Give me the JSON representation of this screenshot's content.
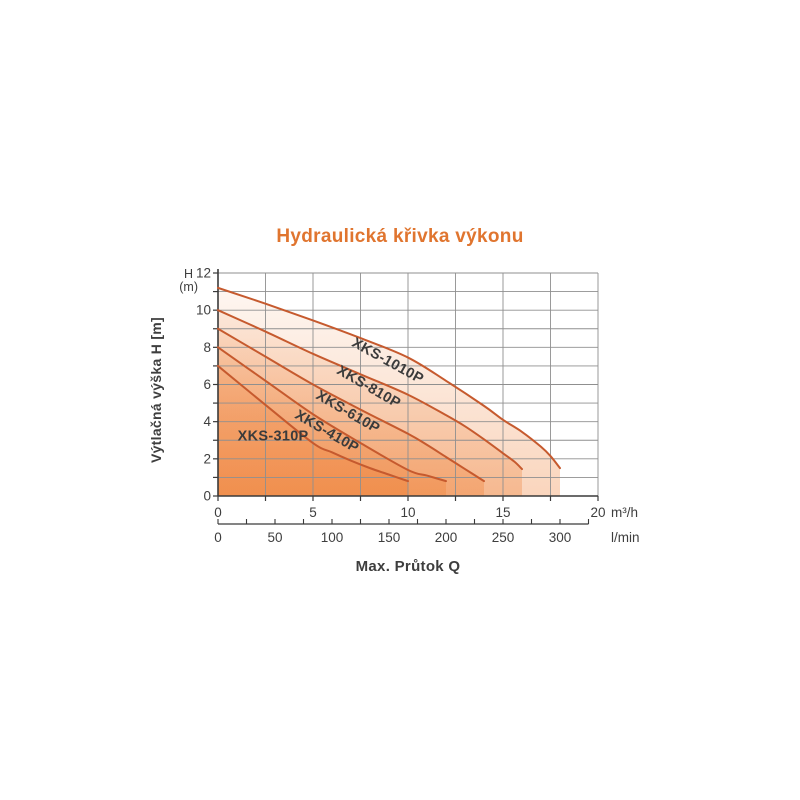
{
  "chart_data": {
    "type": "line",
    "title": "Hydraulická křivka výkonu",
    "xlabel": "Max. Průtok Q",
    "ylabel": "Výtlačná výška H [m]",
    "y_axis": {
      "unit_top_line1": "H",
      "unit_top_line2": "(m)",
      "range": [
        0,
        12
      ],
      "grid_step": 1,
      "tick_step": 1,
      "labels": [
        0,
        2,
        4,
        6,
        8,
        10,
        12
      ]
    },
    "x_axis": {
      "unit": "m³/h",
      "range": [
        0,
        20
      ],
      "grid_step": 2.5,
      "tick_step": 2.5,
      "labels": [
        0,
        5,
        10,
        15,
        20
      ]
    },
    "x_axis_secondary": {
      "unit": "l/min",
      "range": [
        0,
        325
      ],
      "tick_step": 25,
      "labels": [
        0,
        50,
        100,
        150,
        200,
        250,
        300
      ],
      "l_per_m3h": 16.6667
    },
    "series": [
      {
        "name": "XKS-1010P",
        "points": [
          [
            0,
            11.2
          ],
          [
            2.5,
            10.35
          ],
          [
            5,
            9.45
          ],
          [
            7.5,
            8.5
          ],
          [
            10,
            7.45
          ],
          [
            12,
            6.2
          ],
          [
            14,
            4.85
          ],
          [
            15,
            4.1
          ],
          [
            16,
            3.45
          ],
          [
            17,
            2.65
          ],
          [
            17.5,
            2.15
          ],
          [
            18,
            1.5
          ]
        ],
        "label": {
          "q": 8.95,
          "h": 7.3,
          "angle": 29
        }
      },
      {
        "name": "XKS-810P",
        "points": [
          [
            0,
            10
          ],
          [
            2.5,
            8.85
          ],
          [
            5,
            7.65
          ],
          [
            7.5,
            6.55
          ],
          [
            10,
            5.45
          ],
          [
            12,
            4.35
          ],
          [
            13,
            3.75
          ],
          [
            14,
            3.05
          ],
          [
            15,
            2.3
          ],
          [
            15.6,
            1.85
          ],
          [
            16,
            1.45
          ]
        ],
        "label": {
          "q": 7.95,
          "h": 5.9,
          "angle": 30
        }
      },
      {
        "name": "XKS-610P",
        "points": [
          [
            0,
            9
          ],
          [
            2.5,
            7.5
          ],
          [
            5,
            6.0
          ],
          [
            7.5,
            4.65
          ],
          [
            10,
            3.35
          ],
          [
            11,
            2.75
          ],
          [
            12,
            2.1
          ],
          [
            13,
            1.45
          ],
          [
            14,
            0.8
          ]
        ],
        "label": {
          "q": 6.85,
          "h": 4.55,
          "angle": 30
        }
      },
      {
        "name": "XKS-410P",
        "points": [
          [
            0,
            8
          ],
          [
            2.5,
            6.2
          ],
          [
            5,
            4.4
          ],
          [
            7.5,
            2.85
          ],
          [
            10,
            1.4
          ],
          [
            11,
            1.1
          ],
          [
            12,
            0.8
          ]
        ],
        "label": {
          "q": 5.75,
          "h": 3.5,
          "angle": 30
        }
      },
      {
        "name": "XKS-310P",
        "points": [
          [
            0,
            7
          ],
          [
            2.5,
            4.9
          ],
          [
            5,
            2.85
          ],
          [
            6,
            2.35
          ],
          [
            7,
            1.9
          ],
          [
            8,
            1.5
          ],
          [
            9,
            1.15
          ],
          [
            10,
            0.8
          ]
        ],
        "label": {
          "q": 2.9,
          "h": 3.25,
          "angle": 0
        }
      }
    ],
    "legend_position": "on-curves",
    "grid": true,
    "colors": {
      "title": "#e0752f",
      "curve": "#c65a2e",
      "fill": "#ee7c30",
      "fill_opacity_bottom": 0.32,
      "fill_opacity_top": 0.05,
      "grid": "#8f8f8f",
      "axis": "#3a3a3a",
      "text": "#3e3e3e",
      "series_label": "#3b3b3b"
    }
  }
}
